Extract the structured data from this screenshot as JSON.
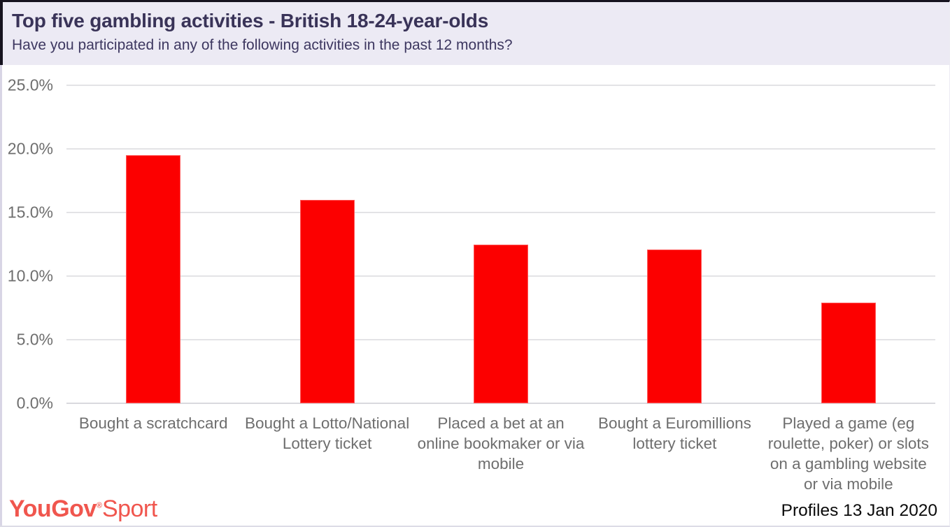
{
  "header": {
    "title": "Top five gambling activities - British 18-24-year-olds",
    "subtitle": "Have you participated in any of the following activities in the past 12 months?"
  },
  "chart_data": {
    "type": "bar",
    "title": "Top five gambling activities - British 18-24-year-olds",
    "subtitle": "Have you participated in any of the following activities in the past 12 months?",
    "categories": [
      "Bought a scratchcard",
      "Bought a Lotto/National Lottery ticket",
      "Placed a bet at an online bookmaker or via mobile",
      "Bought a Euromillions lottery ticket",
      "Played a game (eg roulette, poker) or slots on a gambling website or via mobile"
    ],
    "values": [
      19.5,
      16.0,
      12.5,
      12.1,
      7.9
    ],
    "unit": "%",
    "xlabel": "",
    "ylabel": "",
    "ylim": [
      0,
      25
    ],
    "yticks": [
      25,
      20,
      15,
      10,
      5,
      0
    ],
    "ytick_labels": [
      "25.0%",
      "20.0%",
      "15.0%",
      "10.0%",
      "5.0%",
      "0.0%"
    ],
    "grid": true,
    "legend": false,
    "bar_color": "#fc0000",
    "colors": {
      "header_background": "#eceaf4",
      "title_text": "#393358",
      "axis_text": "#6e6e6e",
      "gridline": "#e3e3e6",
      "brand_coral": "#f0564e"
    }
  },
  "footer": {
    "logo": {
      "brand": "YouGov",
      "registered": "®",
      "sub": "Sport"
    },
    "source": "Profiles 13 Jan 2020"
  }
}
